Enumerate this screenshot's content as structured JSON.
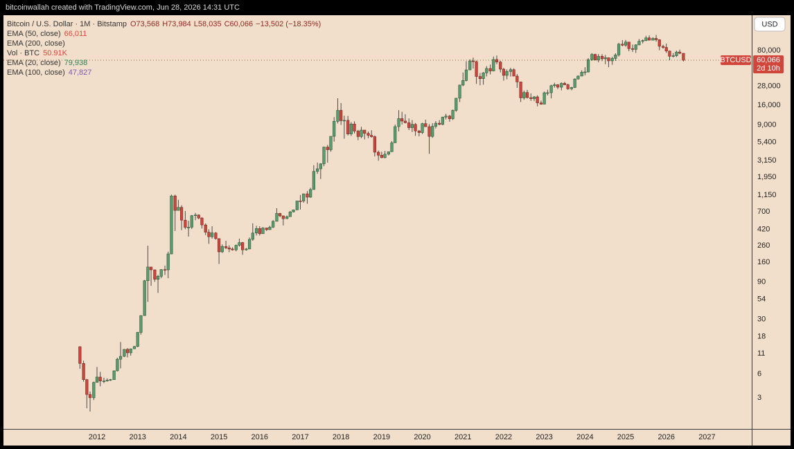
{
  "chart_data": {
    "type": "candlestick",
    "header": "bitcoinwallah created with TradingView.com, Jun 28, 2026 14:31 UTC",
    "symbol": "Bitcoin / U.S. Dollar · 1M · Bitstamp",
    "ohlc_readout": [
      "O73,568",
      "H73,984",
      "L58,035",
      "C60,066",
      "−13,502 (−18.35%)"
    ],
    "indicators": [
      {
        "name": "EMA (50, close)",
        "value": "66,011",
        "color": "#d9473b"
      },
      {
        "name": "EMA (200, close)"
      },
      {
        "name": "Vol · BTC",
        "value": "50.91K",
        "color": "#d9473b"
      },
      {
        "name": "EMA (20, close)",
        "value": "79,938",
        "color": "#2f7d57"
      },
      {
        "name": "EMA (100, close)",
        "value": "47,827",
        "color": "#7b5bb0"
      }
    ],
    "currency": "USD",
    "last_price": {
      "symbol": "BTCUSD",
      "value": 60066,
      "label": "60,066",
      "countdown": "2d 10h",
      "color": "#d0463b"
    },
    "colors": {
      "up": "#5c9b6e",
      "down": "#c9473c"
    },
    "log_scale": true,
    "grid": false,
    "xlim": [
      2009.7,
      2028.1
    ],
    "xticks": [
      2012,
      2013,
      2014,
      2015,
      2016,
      2017,
      2018,
      2019,
      2020,
      2021,
      2022,
      2023,
      2024,
      2025,
      2026,
      2027
    ],
    "ylim": [
      1.2,
      225000
    ],
    "yticks": [
      {
        "value": 80000,
        "label": "80,000"
      },
      {
        "value": 28000,
        "label": "28,000"
      },
      {
        "value": 16000,
        "label": "16,000"
      },
      {
        "value": 9000,
        "label": "9,000"
      },
      {
        "value": 5400,
        "label": "5,400"
      },
      {
        "value": 3150,
        "label": "3,150"
      },
      {
        "value": 1950,
        "label": "1,950"
      },
      {
        "value": 1150,
        "label": "1,150"
      },
      700,
      420,
      260,
      160,
      90,
      54,
      30,
      18,
      11,
      6,
      3
    ],
    "x": [
      2011.58,
      2011.67,
      2011.75,
      2011.83,
      2011.92,
      2012,
      2012.08,
      2012.17,
      2012.25,
      2012.33,
      2012.42,
      2012.5,
      2012.58,
      2012.67,
      2012.75,
      2012.83,
      2012.92,
      2013,
      2013.08,
      2013.17,
      2013.25,
      2013.33,
      2013.42,
      2013.5,
      2013.58,
      2013.67,
      2013.75,
      2013.83,
      2013.92,
      2014,
      2014.08,
      2014.17,
      2014.25,
      2014.33,
      2014.42,
      2014.5,
      2014.58,
      2014.67,
      2014.75,
      2014.83,
      2014.92,
      2015,
      2015.08,
      2015.17,
      2015.25,
      2015.33,
      2015.42,
      2015.5,
      2015.58,
      2015.67,
      2015.75,
      2015.83,
      2015.92,
      2016,
      2016.08,
      2016.17,
      2016.25,
      2016.33,
      2016.42,
      2016.5,
      2016.58,
      2016.67,
      2016.75,
      2016.83,
      2016.92,
      2017,
      2017.08,
      2017.17,
      2017.25,
      2017.33,
      2017.42,
      2017.5,
      2017.58,
      2017.67,
      2017.75,
      2017.83,
      2017.92,
      2018,
      2018.08,
      2018.17,
      2018.25,
      2018.33,
      2018.42,
      2018.5,
      2018.58,
      2018.67,
      2018.75,
      2018.83,
      2018.92,
      2019,
      2019.08,
      2019.17,
      2019.25,
      2019.33,
      2019.42,
      2019.5,
      2019.58,
      2019.67,
      2019.75,
      2019.83,
      2019.92,
      2020,
      2020.08,
      2020.17,
      2020.25,
      2020.33,
      2020.42,
      2020.5,
      2020.58,
      2020.67,
      2020.75,
      2020.83,
      2020.92,
      2021,
      2021.08,
      2021.17,
      2021.25,
      2021.33,
      2021.42,
      2021.5,
      2021.58,
      2021.67,
      2021.75,
      2021.83,
      2021.92,
      2022,
      2022.08,
      2022.17,
      2022.25,
      2022.33,
      2022.42,
      2022.5,
      2022.58,
      2022.67,
      2022.75,
      2022.83,
      2022.92,
      2023,
      2023.08,
      2023.17,
      2023.25,
      2023.33,
      2023.42,
      2023.5,
      2023.58,
      2023.67,
      2023.75,
      2023.83,
      2023.92,
      2024,
      2024.08,
      2024.17,
      2024.25,
      2024.33,
      2024.42,
      2024.5,
      2024.58,
      2024.67,
      2024.75,
      2024.83,
      2024.92,
      2025,
      2025.08,
      2025.17,
      2025.25,
      2025.33,
      2025.42,
      2025.5,
      2025.58,
      2025.67,
      2025.75,
      2025.83,
      2025.92,
      2026,
      2026.08,
      2026.17,
      2026.25,
      2026.33,
      2026.42
    ],
    "open": [
      13.4,
      8.2,
      5.1,
      3.3,
      3.0,
      4.7,
      5.5,
      4.9,
      4.9,
      5.0,
      5.1,
      6.6,
      9.3,
      10.1,
      12.4,
      11.2,
      12.6,
      13.5,
      20.4,
      33.4,
      93,
      139,
      128,
      97,
      106,
      129,
      128,
      204,
      1120,
      732,
      800,
      550,
      445,
      447,
      628,
      640,
      585,
      478,
      386,
      338,
      378,
      320,
      217,
      254,
      244,
      236,
      230,
      263,
      285,
      230,
      236,
      313,
      377,
      430,
      369,
      437,
      416,
      448,
      531,
      670,
      624,
      574,
      609,
      700,
      743,
      966,
      965,
      1190,
      1080,
      1350,
      2300,
      2480,
      2870,
      4700,
      4340,
      6440,
      10000,
      13800,
      10200,
      10300,
      6900,
      9240,
      7500,
      6390,
      7730,
      7020,
      6630,
      6370,
      4040,
      3700,
      3440,
      3810,
      4100,
      5320,
      8560,
      10830,
      10080,
      9590,
      8300,
      9150,
      7540,
      7190,
      9350,
      8550,
      6420,
      8630,
      9460,
      9140,
      11330,
      11650,
      10780,
      13800,
      19700,
      28990,
      33100,
      45200,
      58800,
      57700,
      37300,
      35000,
      41500,
      47100,
      43800,
      61300,
      57000,
      46200,
      38500,
      43200,
      45500,
      37700,
      31800,
      19900,
      23300,
      20050,
      19420,
      20490,
      17160,
      16540,
      23130,
      23150,
      28480,
      29250,
      27220,
      30480,
      29240,
      25940,
      26970,
      34640,
      37720,
      42270,
      42580,
      61130,
      71300,
      60640,
      67500,
      62700,
      64600,
      58970,
      63330,
      70220,
      96400,
      93400,
      102400,
      84350,
      82540,
      94200,
      104600,
      107100,
      115700,
      108200,
      114000,
      109600,
      90400,
      87500,
      78700,
      67500,
      68500,
      76400,
      73568
    ],
    "high": [
      13.6,
      8.9,
      5.2,
      3.6,
      4.8,
      7.4,
      6.4,
      5.4,
      5.3,
      5.2,
      6.7,
      9.7,
      15.4,
      12.5,
      12.9,
      12.7,
      13.7,
      20.7,
      33.8,
      95,
      260,
      139,
      129,
      110,
      130,
      145,
      218,
      1163,
      1160,
      1000,
      850,
      718,
      540,
      640,
      680,
      650,
      600,
      500,
      420,
      460,
      387,
      320,
      270,
      300,
      263,
      248,
      268,
      320,
      290,
      243,
      330,
      502,
      466,
      460,
      448,
      440,
      466,
      550,
      780,
      680,
      625,
      630,
      720,
      750,
      970,
      1150,
      1200,
      1290,
      1420,
      2760,
      2980,
      2930,
      4750,
      5000,
      6450,
      11300,
      19660,
      17100,
      11800,
      11700,
      9760,
      9990,
      7780,
      8500,
      7760,
      7400,
      7700,
      6600,
      4240,
      4100,
      4200,
      4100,
      5600,
      9090,
      13880,
      13200,
      12300,
      10900,
      10370,
      9520,
      7750,
      9580,
      10500,
      9200,
      9470,
      10080,
      10390,
      11440,
      12470,
      12060,
      14100,
      19880,
      29300,
      41950,
      58350,
      61800,
      64900,
      59500,
      41300,
      42400,
      50500,
      52900,
      67000,
      69000,
      59100,
      47900,
      45800,
      48200,
      47400,
      40000,
      31900,
      24600,
      25200,
      22700,
      21000,
      21470,
      18400,
      23900,
      25250,
      29200,
      31000,
      29800,
      31400,
      31800,
      30200,
      27500,
      35200,
      38400,
      44700,
      48900,
      64000,
      73800,
      72700,
      71900,
      71900,
      70000,
      65000,
      66500,
      73600,
      99800,
      108300,
      109100,
      102500,
      95000,
      95800,
      111900,
      110500,
      123200,
      124400,
      117900,
      126200,
      111000,
      94600,
      97900,
      79500,
      74000,
      79500,
      82000,
      73984
    ],
    "low": [
      7.0,
      4.8,
      2.2,
      2.0,
      2.8,
      4.7,
      4.2,
      4.6,
      4.8,
      4.9,
      5.1,
      6.5,
      7.1,
      9.9,
      9.8,
      10.3,
      12.6,
      13.2,
      19.1,
      33.2,
      50,
      80,
      90,
      65,
      100,
      110,
      100,
      202,
      400,
      731,
      410,
      422,
      340,
      425,
      550,
      565,
      430,
      355,
      275,
      320,
      310,
      152,
      210,
      235,
      215,
      225,
      220,
      253,
      199,
      225,
      235,
      300,
      350,
      350,
      368,
      400,
      413,
      436,
      530,
      600,
      470,
      570,
      605,
      690,
      740,
      750,
      918,
      890,
      1060,
      1350,
      2140,
      1840,
      2680,
      2970,
      4100,
      5500,
      9400,
      9000,
      6000,
      6600,
      6500,
      7000,
      5750,
      6100,
      5880,
      6100,
      6200,
      3560,
      3150,
      3400,
      3380,
      3680,
      4070,
      5320,
      7450,
      9100,
      9400,
      7730,
      7300,
      6530,
      6430,
      6870,
      8450,
      3850,
      6150,
      8100,
      8900,
      8900,
      10550,
      9880,
      10400,
      13200,
      17600,
      28000,
      32300,
      45000,
      47000,
      30000,
      28800,
      29300,
      37300,
      39600,
      43300,
      53300,
      42000,
      32900,
      34300,
      37200,
      37700,
      26700,
      17600,
      18800,
      19600,
      18200,
      18100,
      15500,
      16300,
      16500,
      21400,
      19600,
      26900,
      25800,
      24800,
      28900,
      25200,
      24900,
      26600,
      34100,
      37600,
      38500,
      41900,
      59000,
      59600,
      56500,
      58400,
      53500,
      49000,
      52500,
      58900,
      66800,
      90500,
      89100,
      78200,
      76600,
      74400,
      93300,
      98200,
      105100,
      107300,
      107200,
      103500,
      80600,
      84000,
      74500,
      60000,
      65000,
      66000,
      72000,
      58035
    ],
    "close": [
      8.2,
      5.1,
      3.3,
      3.0,
      4.7,
      5.5,
      4.9,
      4.9,
      5.0,
      5.1,
      6.6,
      9.3,
      10.1,
      12.4,
      11.2,
      12.6,
      13.5,
      20.4,
      33.4,
      93,
      139,
      128,
      97,
      106,
      129,
      128,
      204,
      1120,
      732,
      800,
      550,
      445,
      447,
      628,
      640,
      585,
      478,
      386,
      338,
      378,
      320,
      217,
      254,
      244,
      236,
      230,
      263,
      285,
      230,
      236,
      313,
      377,
      430,
      369,
      437,
      416,
      448,
      531,
      670,
      624,
      574,
      609,
      700,
      743,
      966,
      965,
      1190,
      1080,
      1350,
      2300,
      2480,
      2870,
      4700,
      4340,
      6440,
      10000,
      13800,
      10200,
      10300,
      6900,
      9240,
      7500,
      6390,
      7730,
      7020,
      6630,
      6370,
      4040,
      3700,
      3440,
      3810,
      4100,
      5320,
      8560,
      10830,
      10080,
      9590,
      8300,
      9150,
      7540,
      7190,
      9350,
      8550,
      6420,
      8630,
      9460,
      9140,
      11330,
      11650,
      10780,
      13800,
      19700,
      28990,
      33100,
      45200,
      58800,
      57700,
      37300,
      35000,
      41500,
      47100,
      43800,
      61300,
      57000,
      46200,
      38500,
      43200,
      45500,
      37700,
      31800,
      19900,
      23300,
      20050,
      19420,
      20490,
      17160,
      16540,
      23130,
      23150,
      28480,
      29250,
      27220,
      30480,
      29240,
      25940,
      26970,
      34640,
      37720,
      42270,
      42580,
      61130,
      71300,
      60640,
      67500,
      62700,
      64600,
      58970,
      63330,
      70220,
      96400,
      93400,
      102400,
      84350,
      82540,
      94200,
      104600,
      107100,
      115700,
      108200,
      114000,
      109600,
      90400,
      87500,
      78700,
      67500,
      68500,
      76400,
      73568,
      60066
    ]
  }
}
